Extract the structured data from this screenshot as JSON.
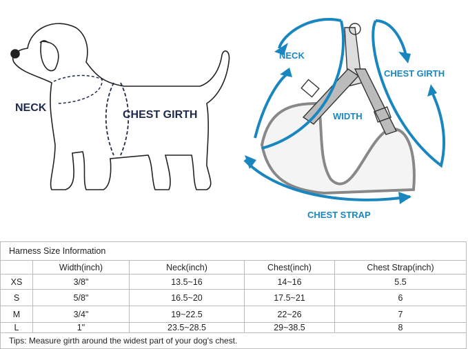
{
  "labels": {
    "dog_neck": "NECK",
    "dog_chest_girth": "CHEST GIRTH",
    "harness_neck": "NECK",
    "harness_chest_girth": "CHEST GIRTH",
    "harness_width": "WIDTH",
    "harness_chest_strap": "CHEST STRAP"
  },
  "colors": {
    "accent": "#1a86c0",
    "dog_label": "#1d2a4a"
  },
  "table": {
    "title": "Harness Size Information",
    "headers": [
      "",
      "Width(inch)",
      "Neck(inch)",
      "Chest(inch)",
      "Chest Strap(inch)"
    ],
    "rows": [
      [
        "XS",
        "3/8\"",
        "13.5~16",
        "14~16",
        "5.5"
      ],
      [
        "S",
        "5/8\"",
        "16.5~20",
        "17.5~21",
        "6"
      ],
      [
        "M",
        "3/4\"",
        "19~22.5",
        "22~26",
        "7"
      ],
      [
        "L",
        "1\"",
        "23.5~28.5",
        "29~38.5",
        "8"
      ]
    ],
    "tips": "Tips: Measure girth around the widest part of your dog's chest."
  }
}
